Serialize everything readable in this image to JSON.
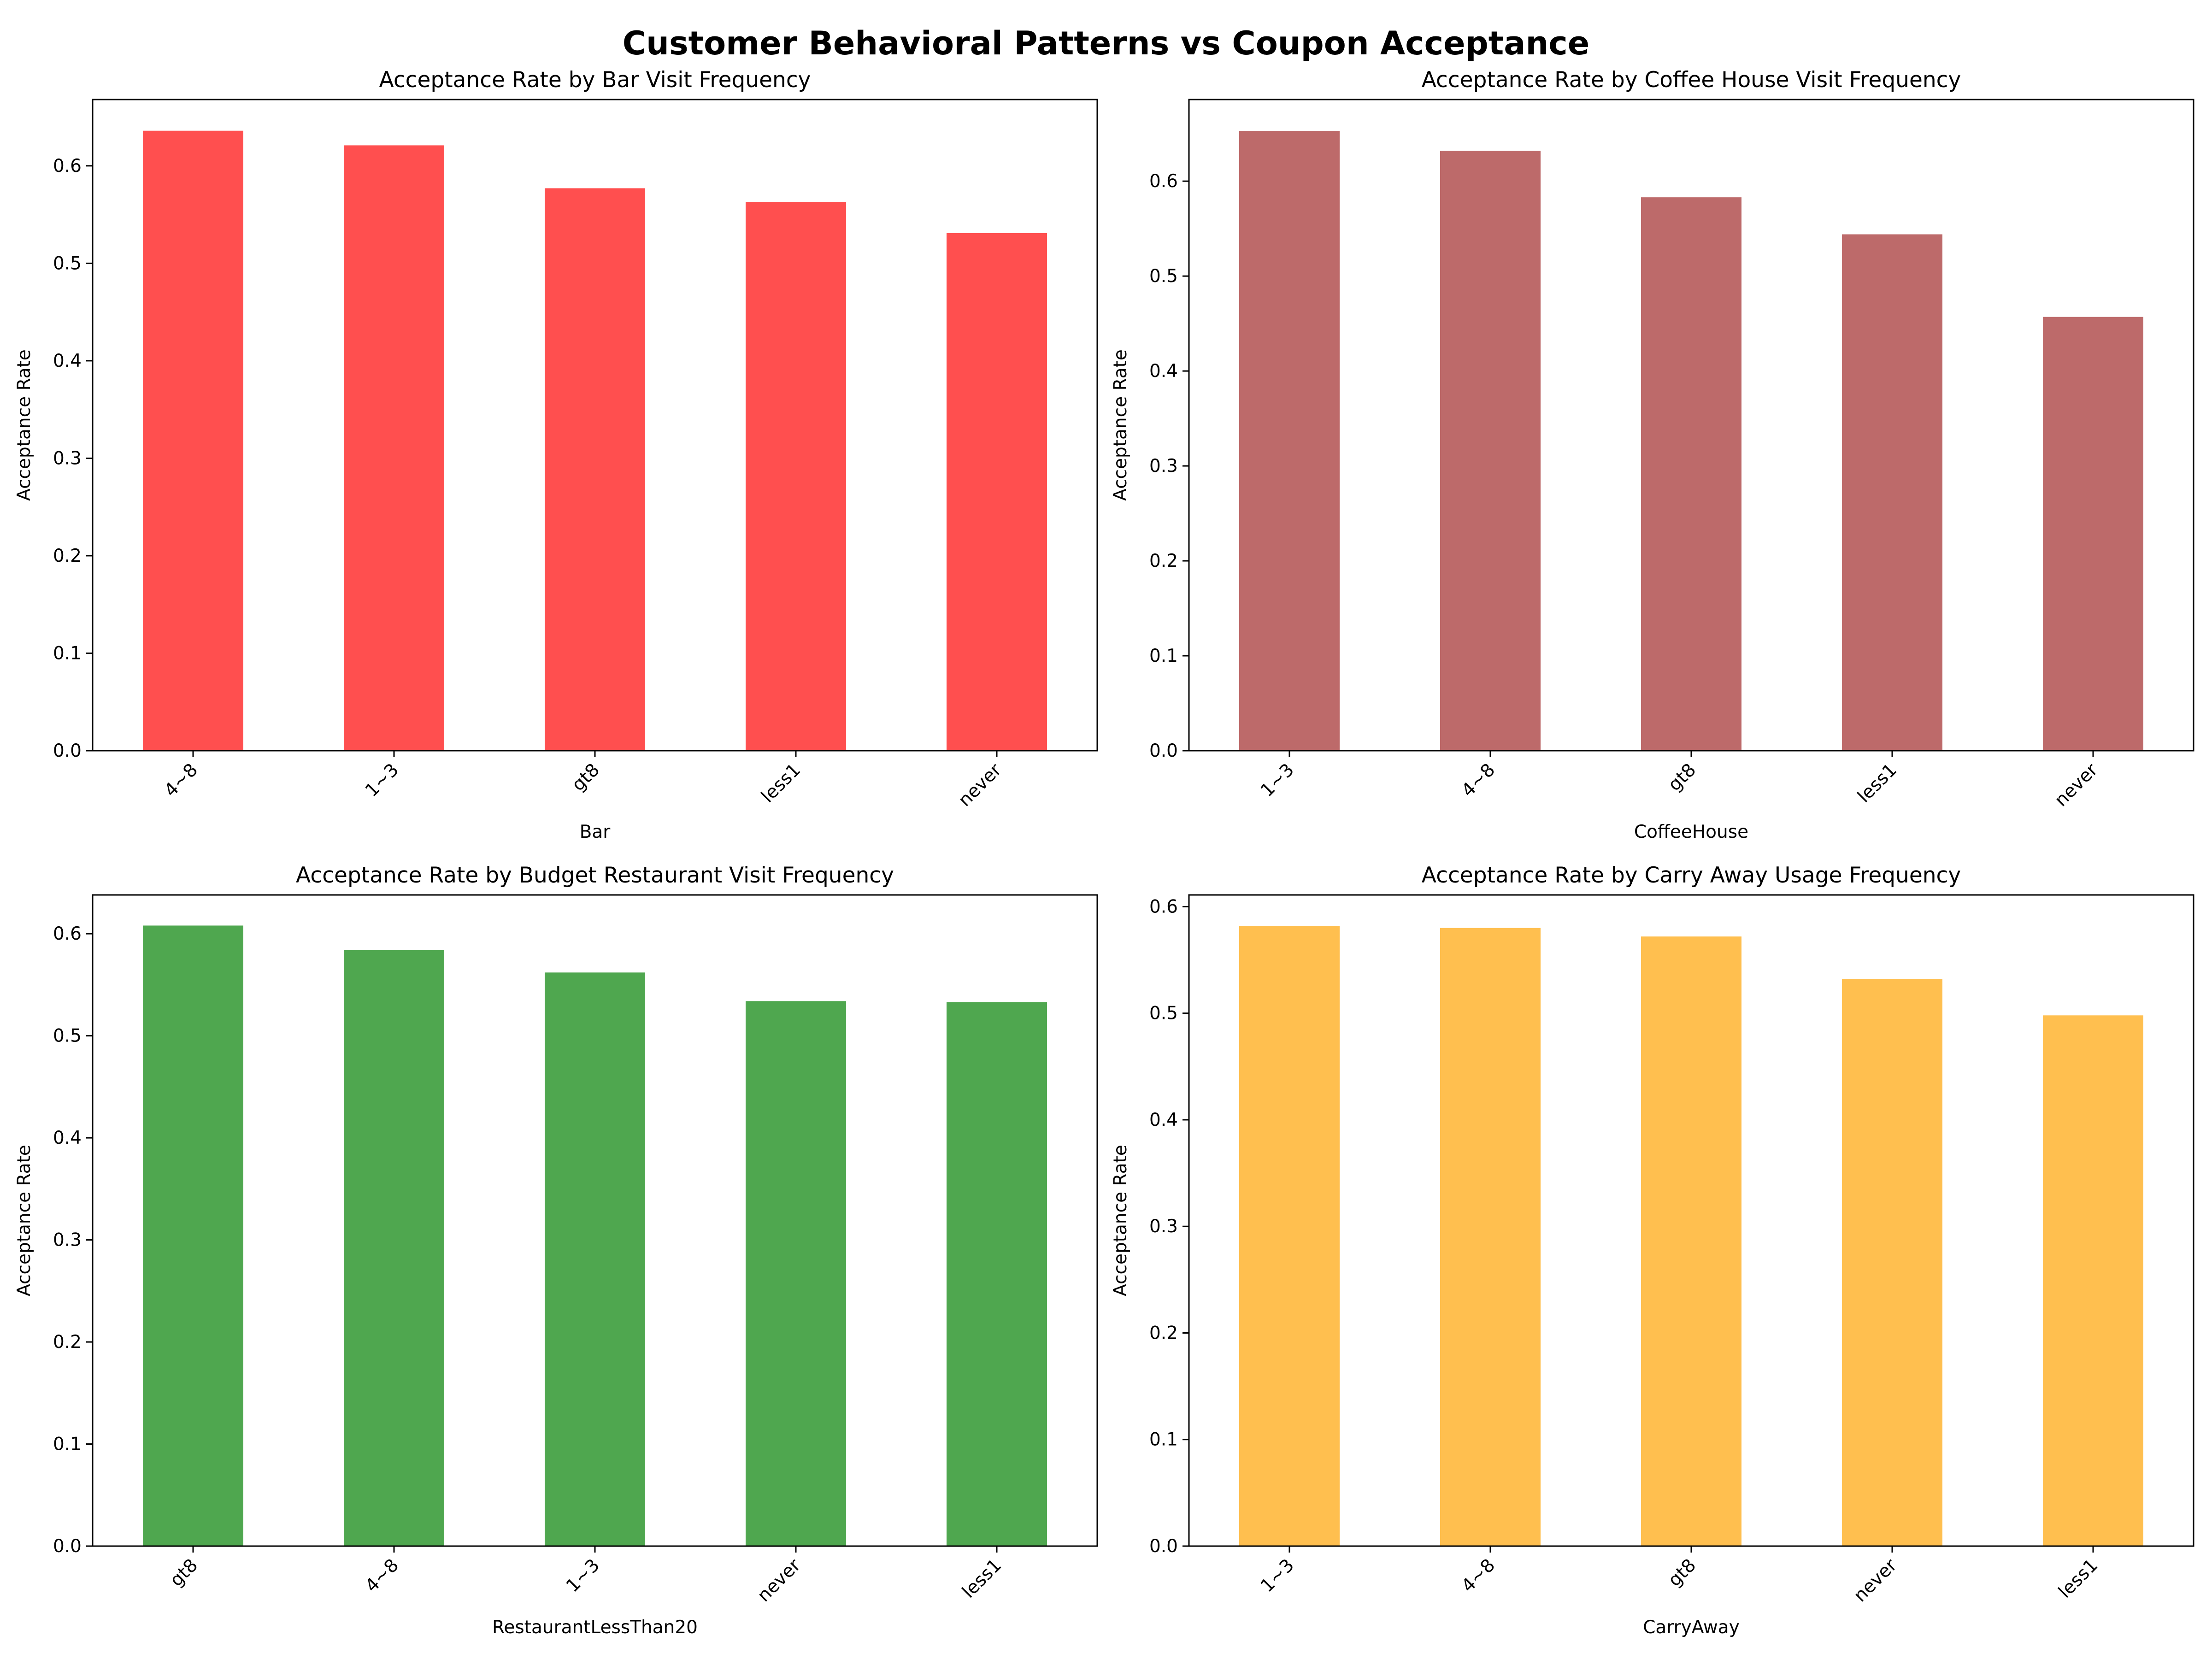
{
  "figure_title": "Customer Behavioral Patterns vs Coupon Acceptance",
  "chart_data": [
    {
      "type": "bar",
      "title": "Acceptance Rate by Bar Visit Frequency",
      "xlabel": "Bar",
      "ylabel": "Acceptance Rate",
      "categories": [
        "4~8",
        "1~3",
        "gt8",
        "less1",
        "never"
      ],
      "values": [
        0.636,
        0.621,
        0.577,
        0.563,
        0.531
      ],
      "ylim": [
        0,
        0.668
      ],
      "yticks": [
        0.0,
        0.1,
        0.2,
        0.3,
        0.4,
        0.5,
        0.6
      ],
      "color": "#ff4f4f",
      "grid": false
    },
    {
      "type": "bar",
      "title": "Acceptance Rate by Coffee House Visit Frequency",
      "xlabel": "CoffeeHouse",
      "ylabel": "Acceptance Rate",
      "categories": [
        "1~3",
        "4~8",
        "gt8",
        "less1",
        "never"
      ],
      "values": [
        0.653,
        0.632,
        0.583,
        0.544,
        0.457
      ],
      "ylim": [
        0,
        0.686
      ],
      "yticks": [
        0.0,
        0.1,
        0.2,
        0.3,
        0.4,
        0.5,
        0.6
      ],
      "color": "#bd6a6a",
      "grid": false
    },
    {
      "type": "bar",
      "title": "Acceptance Rate by Budget Restaurant Visit Frequency",
      "xlabel": "RestaurantLessThan20",
      "ylabel": "Acceptance Rate",
      "categories": [
        "gt8",
        "4~8",
        "1~3",
        "never",
        "less1"
      ],
      "values": [
        0.608,
        0.584,
        0.562,
        0.534,
        0.533
      ],
      "ylim": [
        0,
        0.638
      ],
      "yticks": [
        0.0,
        0.1,
        0.2,
        0.3,
        0.4,
        0.5,
        0.6
      ],
      "color": "#4fa74f",
      "grid": false
    },
    {
      "type": "bar",
      "title": "Acceptance Rate by Carry Away Usage Frequency",
      "xlabel": "CarryAway",
      "ylabel": "Acceptance Rate",
      "categories": [
        "1~3",
        "4~8",
        "gt8",
        "never",
        "less1"
      ],
      "values": [
        0.582,
        0.58,
        0.572,
        0.532,
        0.498
      ],
      "ylim": [
        0,
        0.611
      ],
      "yticks": [
        0.0,
        0.1,
        0.2,
        0.3,
        0.4,
        0.5,
        0.6
      ],
      "color": "#ffbf4f",
      "grid": false
    }
  ]
}
